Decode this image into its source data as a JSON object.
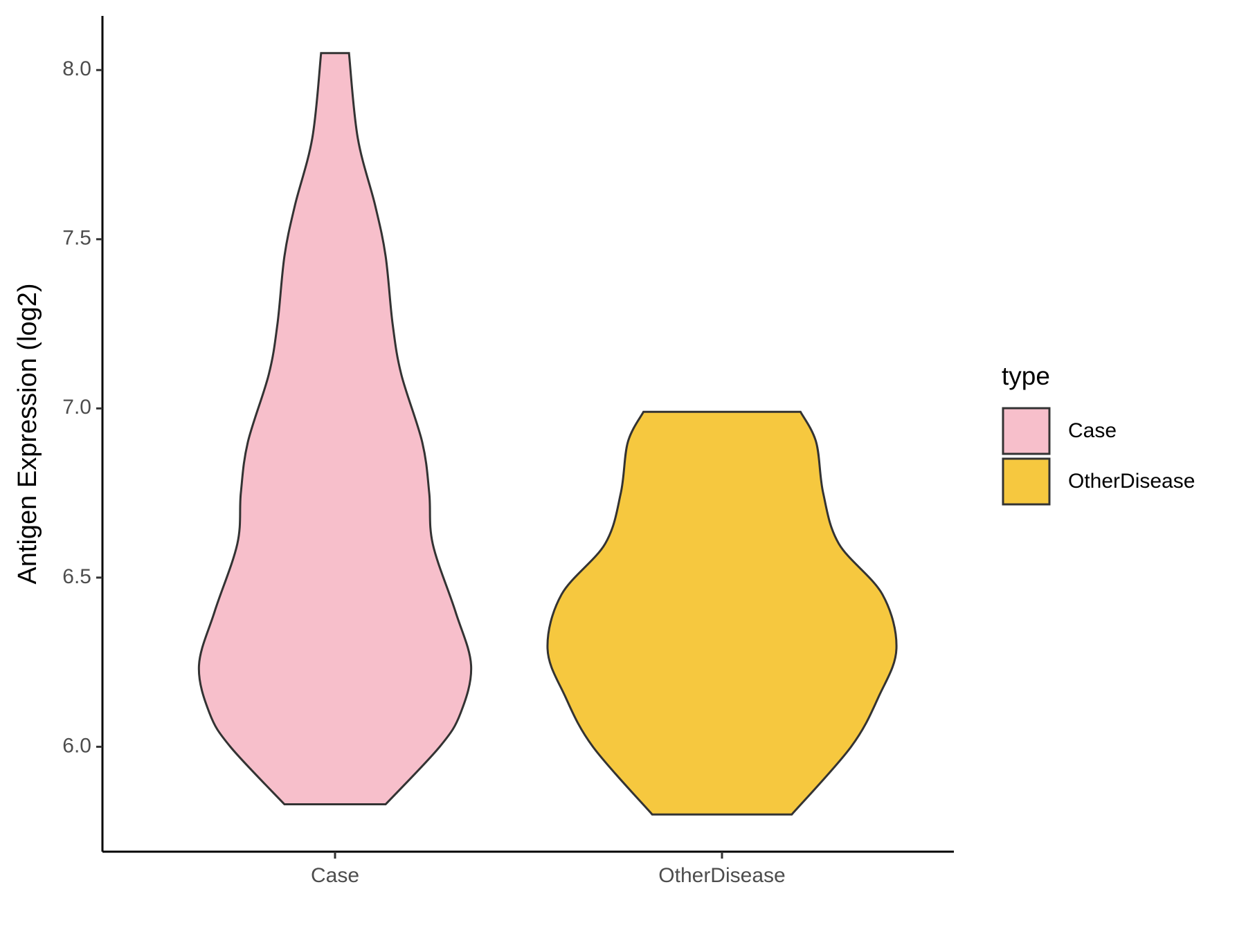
{
  "chart_data": {
    "type": "violin",
    "y_label": "Antigen Expression (log2)",
    "categories": [
      "Case",
      "OtherDisease"
    ],
    "series": [
      {
        "name": "Case",
        "color": "#f7bfcb",
        "y": [
          5.83,
          6.0,
          6.1,
          6.24,
          6.4,
          6.6,
          6.75,
          6.9,
          7.1,
          7.25,
          7.45,
          7.6,
          7.8,
          8.05
        ],
        "density": [
          0.29,
          0.6,
          0.72,
          0.78,
          0.69,
          0.56,
          0.54,
          0.5,
          0.38,
          0.33,
          0.29,
          0.23,
          0.13,
          0.08
        ]
      },
      {
        "name": "OtherDisease",
        "color": "#f6c83f",
        "y": [
          5.8,
          6.0,
          6.15,
          6.29,
          6.45,
          6.6,
          6.75,
          6.9,
          6.99
        ],
        "density": [
          0.4,
          0.74,
          0.9,
          1.0,
          0.92,
          0.67,
          0.58,
          0.54,
          0.45
        ]
      }
    ],
    "ylim": [
      5.69,
      8.16
    ],
    "yticks": [
      {
        "value": 6,
        "label": "6.0"
      },
      {
        "value": 6.5,
        "label": "6.5"
      },
      {
        "value": 7,
        "label": "7.0"
      },
      {
        "value": 7.5,
        "label": "7.5"
      },
      {
        "value": 8,
        "label": "8.0"
      }
    ],
    "legend_title": "type",
    "legend_position": "right"
  }
}
